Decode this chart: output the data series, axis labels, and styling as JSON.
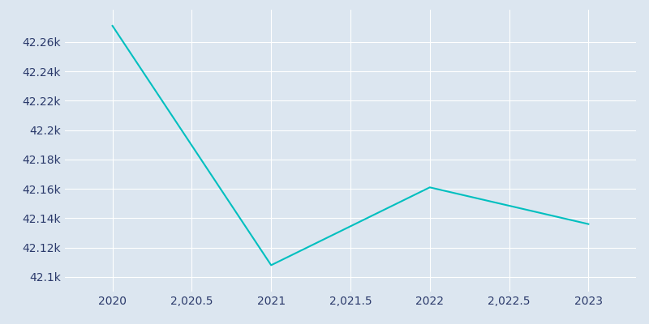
{
  "years": [
    2020,
    2021,
    2022,
    2023
  ],
  "population": [
    42271,
    42108,
    42161,
    42136
  ],
  "line_color": "#00BFBF",
  "background_color": "#dce6f0",
  "grid_color": "#ffffff",
  "tick_color": "#2b3a6b",
  "xlim": [
    2019.7,
    2023.3
  ],
  "ylim": [
    42090,
    42282
  ],
  "ytick_values": [
    42100,
    42120,
    42140,
    42160,
    42180,
    42200,
    42220,
    42240,
    42260
  ],
  "ytick_labels": [
    "42.1k",
    "42.12k",
    "42.14k",
    "42.16k",
    "42.18k",
    "42.2k",
    "42.22k",
    "42.24k",
    "42.26k"
  ],
  "xtick_positions": [
    2020,
    2020.5,
    2021,
    2021.5,
    2022,
    2022.5,
    2023
  ],
  "xtick_labels": [
    "2020",
    "2,020.5",
    "2021",
    "2,021.5",
    "2022",
    "2,022.5",
    "2023"
  ],
  "figsize": [
    8.0,
    4.0
  ],
  "dpi": 100,
  "linewidth": 1.5
}
